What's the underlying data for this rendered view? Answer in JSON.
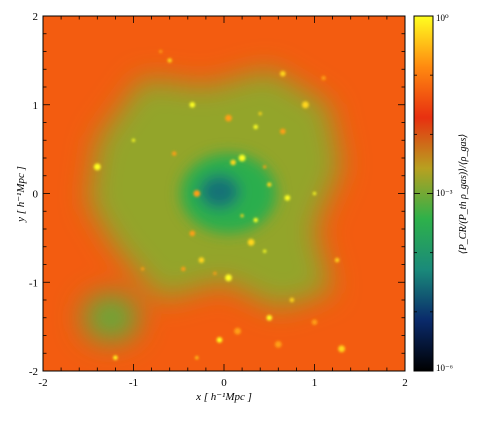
{
  "chart_data": {
    "type": "heatmap",
    "title": "",
    "xlabel": "x [ h⁻¹Mpc ]",
    "ylabel": "y [ h⁻¹Mpc ]",
    "xlim": [
      -2,
      2
    ],
    "ylim": [
      -2,
      2
    ],
    "xticks": [
      -2,
      -1,
      0,
      1,
      2
    ],
    "yticks": [
      -2,
      -1,
      0,
      1,
      2
    ],
    "xtick_labels": [
      "-2",
      "-1",
      "0",
      "1",
      "2"
    ],
    "ytick_labels": [
      "-2",
      "-1",
      "0",
      "1",
      "2"
    ],
    "colorbar": {
      "label": "⟨P_CR/(P_th ρ_gas)⟩/⟨ρ_gas⟩",
      "scale": "log",
      "range": [
        1e-06,
        1
      ],
      "tick_labels": [
        "10⁻⁶",
        "10⁻³",
        "10⁰"
      ],
      "colors": [
        "#000000",
        "#0a2a6b",
        "#1a8a7a",
        "#2eb14a",
        "#b8a020",
        "#e83010",
        "#ff8a10",
        "#ffff20"
      ]
    },
    "field": {
      "background_level": -1.3,
      "filament_level": -2.8,
      "center_level": -4.5,
      "clump_level": -0.3
    }
  }
}
